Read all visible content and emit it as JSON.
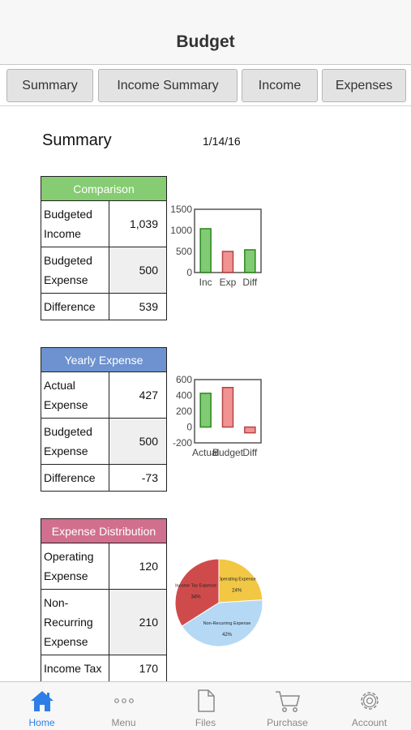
{
  "nav": {
    "title": "Budget"
  },
  "tabs": [
    {
      "label": "Summary"
    },
    {
      "label": "Income Summary"
    },
    {
      "label": "Income"
    },
    {
      "label": "Expenses"
    }
  ],
  "summary": {
    "title": "Summary",
    "date": "1/14/16"
  },
  "comparison": {
    "header": "Comparison",
    "color": "#86cc72",
    "rows": [
      {
        "label": "Budgeted Income",
        "value": "1,039"
      },
      {
        "label": "Budgeted Expense",
        "value": "500"
      },
      {
        "label": "Difference",
        "value": "539"
      }
    ]
  },
  "yearly": {
    "header": "Yearly Expense",
    "color": "#6e92cf",
    "rows": [
      {
        "label": "Actual Expense",
        "value": "427"
      },
      {
        "label": "Budgeted Expense",
        "value": "500"
      },
      {
        "label": "Difference",
        "value": "-73"
      }
    ]
  },
  "distribution": {
    "header": "Expense Distribution",
    "color": "#d16f8f",
    "rows": [
      {
        "label": "Operating Expense",
        "value": "120"
      },
      {
        "label": "Non-Recurring Expense",
        "value": "210"
      },
      {
        "label": "Income Tax",
        "value": "170"
      }
    ]
  },
  "chart_data": [
    {
      "type": "bar",
      "categories": [
        "Inc",
        "Exp",
        "Diff"
      ],
      "values": [
        1039,
        500,
        539
      ],
      "colors": [
        "#6ac25a",
        "#f08080",
        "#6ac25a"
      ],
      "ylim": [
        0,
        1500
      ],
      "yticks": [
        0,
        500,
        1000,
        1500
      ],
      "grid": false
    },
    {
      "type": "bar",
      "categories": [
        "Actual",
        "Budget",
        "Diff"
      ],
      "values": [
        427,
        500,
        -73
      ],
      "colors": [
        "#6ac25a",
        "#f08080",
        "#f08080"
      ],
      "ylim": [
        -200,
        600
      ],
      "yticks": [
        -200,
        0,
        200,
        400,
        600
      ],
      "grid": false
    },
    {
      "type": "pie",
      "slices": [
        {
          "label": "Operating Expense",
          "value": 24,
          "pct": "24%",
          "color": "#f2c744"
        },
        {
          "label": "Non-Recurring Expense",
          "value": 42,
          "pct": "42%",
          "color": "#b5d8f5"
        },
        {
          "label": "Income Tax Expense",
          "value": 34,
          "pct": "34%",
          "color": "#cf4b4b"
        }
      ]
    }
  ],
  "tabbar": [
    {
      "label": "Home",
      "icon": "home-icon",
      "active": true
    },
    {
      "label": "Menu",
      "icon": "menu-dots-icon",
      "active": false
    },
    {
      "label": "Files",
      "icon": "file-icon",
      "active": false
    },
    {
      "label": "Purchase",
      "icon": "cart-icon",
      "active": false
    },
    {
      "label": "Account",
      "icon": "gear-icon",
      "active": false
    }
  ],
  "colors": {
    "accent": "#2d7ee6",
    "inactive": "#888888"
  }
}
